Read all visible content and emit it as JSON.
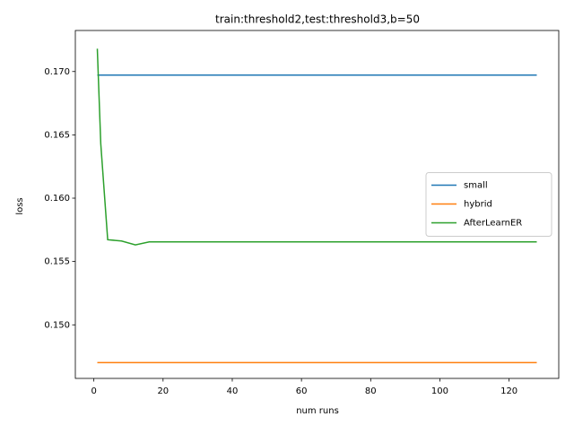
{
  "chart_data": {
    "type": "line",
    "title": "train:threshold2,test:threshold3,b=50",
    "x_label": "num runs",
    "y_label": "loss",
    "x": [
      1,
      2,
      4,
      8,
      12,
      16,
      32,
      64,
      128
    ],
    "series": [
      {
        "name": "small",
        "color": "#1f77b4",
        "values": [
          0.16972,
          0.16972,
          0.16972,
          0.16972,
          0.16972,
          0.16972,
          0.16972,
          0.16972,
          0.16972
        ]
      },
      {
        "name": "hybrid",
        "color": "#ff7f0e",
        "values": [
          0.14702,
          0.14702,
          0.14702,
          0.14702,
          0.14702,
          0.14702,
          0.14702,
          0.14702,
          0.14702
        ]
      },
      {
        "name": "AfterLearnER",
        "color": "#2ca02c",
        "values": [
          0.1718,
          0.1643,
          0.15672,
          0.15662,
          0.15631,
          0.15655,
          0.15655,
          0.15655,
          0.15655
        ]
      }
    ],
    "xlim": [
      -5.35,
      134.35
    ],
    "ylim": [
      0.14577,
      0.17324
    ],
    "xticks": [
      0,
      20,
      40,
      60,
      80,
      100,
      120
    ],
    "yticks": [
      {
        "value": 0.15,
        "label": "0.150"
      },
      {
        "value": 0.155,
        "label": "0.155"
      },
      {
        "value": 0.16,
        "label": "0.160"
      },
      {
        "value": 0.165,
        "label": "0.165"
      },
      {
        "value": 0.17,
        "label": "0.170"
      }
    ],
    "legend": "center right",
    "grid": false
  }
}
